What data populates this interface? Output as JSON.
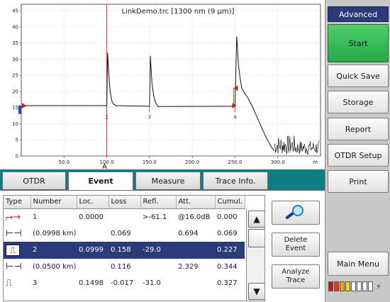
{
  "trace": {
    "title": "LinkDemo.trc [1300 nm (9 µm)]",
    "x_unit": "m",
    "cursor_label": "A",
    "event_markers": [
      "2",
      "3",
      "4"
    ]
  },
  "chart_data": {
    "type": "line",
    "title": "LinkDemo.trc [1300 nm (9 µm)]",
    "xlabel": "m",
    "ylabel": "",
    "xlim": [
      0,
      350
    ],
    "ylim": [
      0,
      47
    ],
    "x_ticks": [
      50,
      100,
      150,
      200,
      250,
      300
    ],
    "x_tick_labels": [
      "50.0",
      "100.0",
      "150.0",
      "200.0",
      "250.0",
      "300.0"
    ],
    "y_ticks": [
      0,
      5,
      10,
      15,
      20,
      25,
      30,
      35,
      40,
      45
    ],
    "grid": true,
    "cursor_a": 100,
    "events": [
      {
        "label": "2",
        "x": 100
      },
      {
        "label": "3",
        "x": 150
      },
      {
        "label": "4",
        "x": 250
      }
    ],
    "series": [
      {
        "values": [
          [
            0,
            15
          ],
          [
            2,
            15.6
          ],
          [
            4,
            15.3
          ],
          [
            6,
            15.6
          ],
          [
            99,
            15.6
          ],
          [
            100,
            15.6
          ],
          [
            101,
            32
          ],
          [
            102,
            27
          ],
          [
            103,
            23
          ],
          [
            104,
            20
          ],
          [
            106,
            17
          ],
          [
            108,
            16
          ],
          [
            111,
            15.6
          ],
          [
            149,
            15.4
          ],
          [
            150,
            15.4
          ],
          [
            151,
            31
          ],
          [
            152,
            26
          ],
          [
            153,
            22
          ],
          [
            155,
            18.5
          ],
          [
            157,
            16.6
          ],
          [
            160,
            15.3
          ],
          [
            249,
            15.4
          ],
          [
            250,
            15.4
          ],
          [
            252,
            37
          ],
          [
            253,
            33
          ],
          [
            254,
            28
          ],
          [
            256,
            24
          ],
          [
            258,
            21
          ],
          [
            261,
            19.5
          ],
          [
            265,
            18
          ],
          [
            270,
            15.5
          ],
          [
            275,
            12.5
          ],
          [
            280,
            9.5
          ],
          [
            285,
            6.5
          ],
          [
            290,
            4
          ],
          [
            293,
            2.6
          ],
          [
            296,
            1.5
          ]
        ]
      }
    ]
  },
  "right_panel": {
    "mode": "Advanced",
    "buttons": [
      "Start",
      "Quick Save",
      "Storage",
      "Report",
      "OTDR Setup",
      "Print"
    ],
    "main_menu": "Main Menu",
    "battery_plug": "⚡",
    "colors": {
      "start": "#34b957",
      "mode_bg": "#2b3a78"
    }
  },
  "tabs": [
    "OTDR",
    "Event",
    "Measure",
    "Trace Info."
  ],
  "active_tab": "Event",
  "table": {
    "headers": [
      "Type",
      "Number",
      "Loc.",
      "Loss",
      "Refl.",
      "Att.",
      "Cumul."
    ],
    "rows": [
      {
        "icon": "launch-icon",
        "glyph": "⮣→",
        "number": "1",
        "loc": "0.0000",
        "loss": "",
        "refl": ">-61.1",
        "att": "@16.0dB",
        "cumul": "0.000",
        "selected": false
      },
      {
        "icon": "span-icon",
        "glyph": "⊢⊣",
        "number": "(0.0998 km)",
        "loc": "",
        "loss": "0.069",
        "refl": "",
        "att": "0.694",
        "cumul": "0.069",
        "selected": false
      },
      {
        "icon": "reflective-event-icon",
        "glyph": "⎍",
        "number": "2",
        "loc": "0.0999",
        "loss": "0.158",
        "refl": "-29.0",
        "att": "",
        "cumul": "0.227",
        "selected": true
      },
      {
        "icon": "span-icon",
        "glyph": "⊢⊣",
        "number": "(0.0500 km)",
        "loc": "",
        "loss": "0.116",
        "refl": "",
        "att": "2.329",
        "cumul": "0.344",
        "selected": false
      },
      {
        "icon": "reflective-event-icon",
        "glyph": "⎍",
        "number": "3",
        "loc": "0.1498",
        "loss": "-0.017",
        "refl": "-31.0",
        "att": "",
        "cumul": "0.327",
        "selected": false
      }
    ]
  },
  "actions": {
    "zoom_icon": "magnifier-icon",
    "delete_event": "Delete\nEvent",
    "analyze_trace": "Analyze\nTrace"
  }
}
